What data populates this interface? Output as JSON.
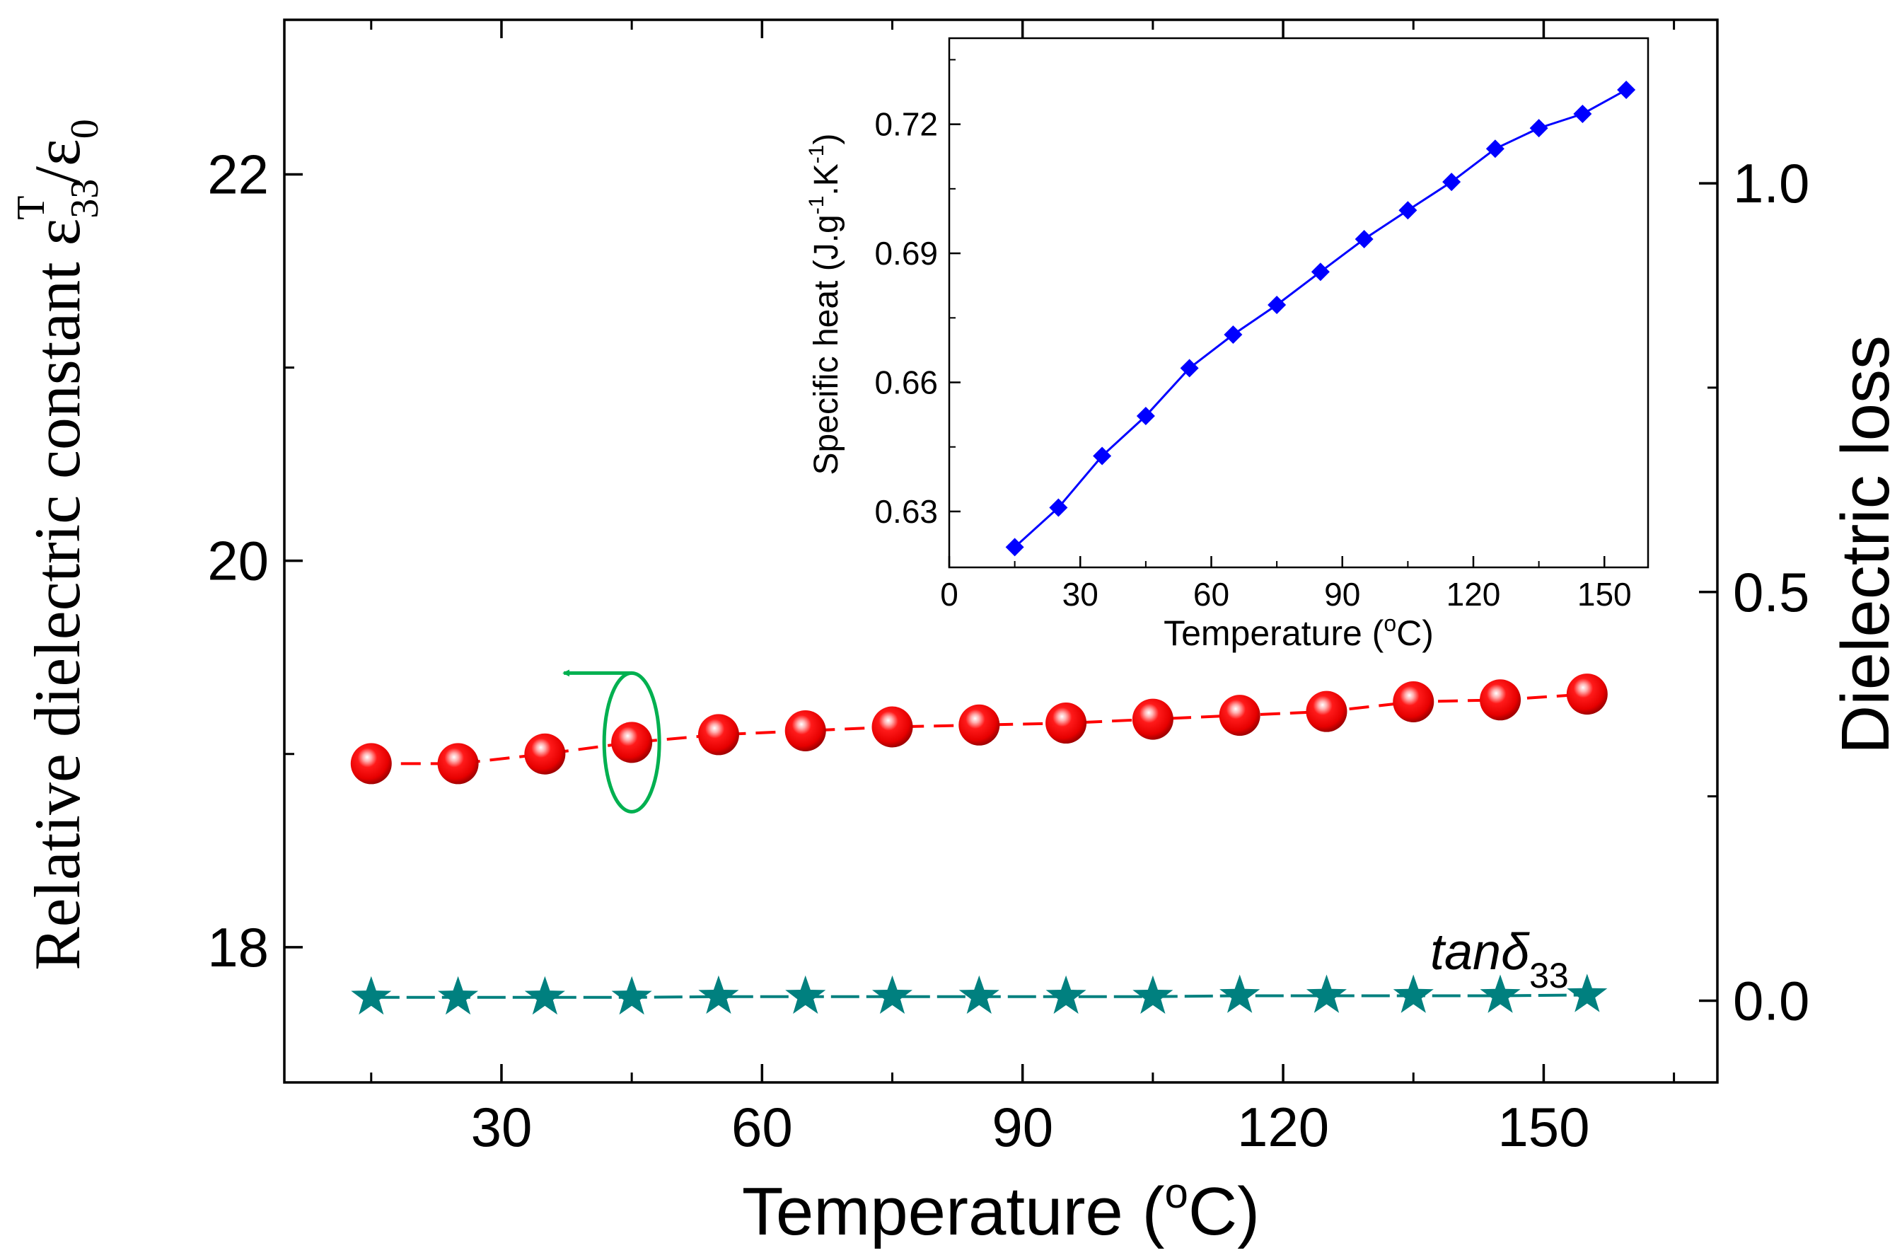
{
  "chart_data": [
    {
      "type": "scatter",
      "name": "main",
      "xlabel": "Temperature (",
      "xlabel_sup": "o",
      "xlabel_tail": "C)",
      "ylabel_left_text": "Relative dielectric constant ε",
      "ylabel_left_sub": "33",
      "ylabel_left_sup": "T",
      "ylabel_left_tail": "/ε",
      "ylabel_left_sub2": "0",
      "ylabel_right": "Dielectric loss",
      "xlim": [
        5,
        170
      ],
      "ylim_left": [
        17.3,
        22.8
      ],
      "ylim_right": [
        -0.1,
        1.2
      ],
      "x_ticks": [
        "30",
        "60",
        "90",
        "120",
        "150"
      ],
      "y_left_ticks": [
        "18",
        "20",
        "22"
      ],
      "y_right_ticks": [
        "0.0",
        "0.5",
        "1.0"
      ],
      "annotation": "tanδ",
      "annotation_sub": "33",
      "series": [
        {
          "name": "relative dielectric constant",
          "axis": "left",
          "color": "#ff0000",
          "marker": "sphere",
          "x": [
            15,
            25,
            35,
            45,
            55,
            65,
            75,
            85,
            95,
            105,
            115,
            125,
            135,
            145,
            155
          ],
          "y": [
            18.95,
            18.95,
            19.0,
            19.06,
            19.1,
            19.12,
            19.14,
            19.15,
            19.16,
            19.18,
            19.2,
            19.22,
            19.27,
            19.28,
            19.31
          ]
        },
        {
          "name": "tanδ33",
          "axis": "right",
          "color": "#00807f",
          "marker": "star",
          "x": [
            15,
            25,
            35,
            45,
            55,
            65,
            75,
            85,
            95,
            105,
            115,
            125,
            135,
            145,
            155
          ],
          "y": [
            0.004,
            0.004,
            0.004,
            0.004,
            0.005,
            0.005,
            0.005,
            0.005,
            0.005,
            0.005,
            0.006,
            0.006,
            0.006,
            0.006,
            0.007
          ]
        }
      ],
      "axis_indicator_color": "#00b050"
    },
    {
      "type": "line",
      "name": "inset",
      "xlabel": "Temperature (",
      "xlabel_sup": "o",
      "xlabel_tail": "C)",
      "ylabel": "Specific heat (J.g",
      "ylabel_sup1": "-1",
      "ylabel_mid": ".K",
      "ylabel_sup2": "-1",
      "ylabel_tail": ")",
      "xlim": [
        0,
        160
      ],
      "ylim": [
        0.617,
        0.74
      ],
      "x_ticks": [
        "0",
        "30",
        "60",
        "90",
        "120",
        "150"
      ],
      "y_ticks": [
        "0.63",
        "0.66",
        "0.69",
        "0.72"
      ],
      "series": [
        {
          "name": "specific heat",
          "color": "#0000ff",
          "marker": "diamond",
          "x": [
            15,
            25,
            35,
            45,
            55,
            65,
            75,
            85,
            95,
            105,
            115,
            125,
            135,
            145,
            155
          ],
          "y": [
            0.6217,
            0.6309,
            0.6429,
            0.6522,
            0.6633,
            0.6711,
            0.678,
            0.6857,
            0.6933,
            0.7,
            0.7066,
            0.7143,
            0.7191,
            0.7224,
            0.728
          ]
        }
      ]
    }
  ]
}
